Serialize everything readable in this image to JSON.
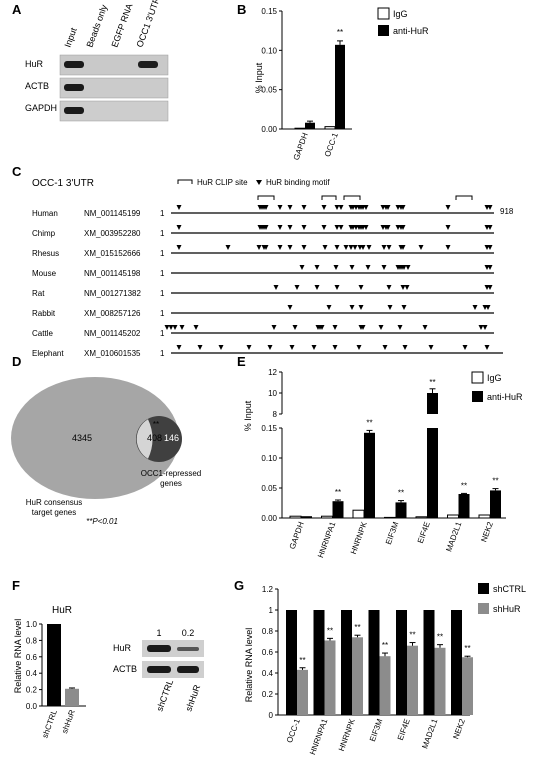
{
  "panel_letters": [
    "A",
    "B",
    "C",
    "D",
    "E",
    "F",
    "G"
  ],
  "panelA": {
    "columns": [
      "Input",
      "Beads only",
      "EGFP RNA",
      "OCC1 3'UTR"
    ],
    "rows": [
      "HuR",
      "ACTB",
      "GAPDH"
    ],
    "bands": [
      [
        1,
        0,
        0,
        1
      ],
      [
        1,
        0,
        0,
        0
      ],
      [
        1,
        0,
        0,
        0
      ]
    ]
  },
  "panelB": {
    "ylabel": "% Input",
    "legend": [
      "IgG",
      "anti-HuR"
    ],
    "sig": "**"
  },
  "panelC": {
    "title": "OCC-1 3'UTR",
    "legend_clip": "HuR CLIP site",
    "legend_motif": "HuR binding motif",
    "start": "1",
    "end_label": "918",
    "species": [
      {
        "name": "Human",
        "acc": "NM_001145199"
      },
      {
        "name": "Chimp",
        "acc": "XM_003952280"
      },
      {
        "name": "Rhesus",
        "acc": "XM_015152666"
      },
      {
        "name": "Mouse",
        "acc": "NM_001145198"
      },
      {
        "name": "Rat",
        "acc": "NM_001271382"
      },
      {
        "name": "Rabbit",
        "acc": "XM_008257126"
      },
      {
        "name": "Cattle",
        "acc": "NM_001145202"
      },
      {
        "name": "Elephant",
        "acc": "XM_010601535"
      }
    ]
  },
  "panelD": {
    "big_count": "4345",
    "overlap_count": "408",
    "small_count": "146",
    "overlap_sig": "**",
    "big_label_1": "HuR consensus",
    "big_label_2": "target genes",
    "small_label_1": "OCC1-repressed",
    "small_label_2": "genes",
    "pvalue": "**P<0.01"
  },
  "panelE": {
    "ylabel": "% Input",
    "legend": [
      "IgG",
      "anti-HuR"
    ],
    "sig": "**"
  },
  "panelF": {
    "title": "HuR",
    "ylabel": "Relative RNA level",
    "blot_values": [
      "1",
      "0.2"
    ],
    "blot_rows": [
      "HuR",
      "ACTB"
    ],
    "blot_cols": [
      "shCTRL",
      "shHuR"
    ]
  },
  "panelG": {
    "ylabel": "Relative RNA level",
    "legend": [
      "shCTRL",
      "shHuR"
    ],
    "sig": "**"
  },
  "chart_data": [
    {
      "type": "bar",
      "categories": [
        "GAPDH",
        "OCC-1"
      ],
      "series": [
        {
          "name": "IgG",
          "values": [
            0.001,
            0.003
          ]
        },
        {
          "name": "anti-HuR",
          "values": [
            0.008,
            0.107
          ]
        }
      ],
      "errors": [
        [
          0.0005,
          0.001
        ],
        [
          0.002,
          0.005
        ]
      ],
      "ylabel": "% Input",
      "ylim": [
        0,
        0.15
      ],
      "yticks": [
        "0.00",
        "0.05",
        "0.10",
        "0.15"
      ],
      "annotations": [
        "**"
      ]
    },
    {
      "type": "bar",
      "categories": [
        "GAPDH",
        "HNRNPA1",
        "HNRNPK",
        "EIF3M",
        "EIF4E",
        "MAD2L1",
        "NEK2"
      ],
      "series": [
        {
          "name": "IgG",
          "values": [
            0.003,
            0.003,
            0.013,
            0.001,
            0.002,
            0.005,
            0.005
          ]
        },
        {
          "name": "anti-HuR",
          "values": [
            0.003,
            0.028,
            0.142,
            0.026,
            10,
            0.04,
            0.046
          ]
        }
      ],
      "errors": [
        0.0005,
        0.002,
        0.004,
        0.003,
        0.4,
        0.001,
        0.003
      ],
      "ylabel": "% Input",
      "axis_break": [
        0.15,
        8
      ],
      "yticks_low": [
        "0.00",
        "0.05",
        "0.10",
        "0.15"
      ],
      "yticks_high": [
        "8",
        "10",
        "12"
      ],
      "annotations": [
        "**"
      ]
    },
    {
      "type": "bar",
      "categories": [
        "shCTRL",
        "shHuR"
      ],
      "values": [
        1.0,
        0.21
      ],
      "errors": [
        0,
        0.01
      ],
      "title": "HuR",
      "ylabel": "Relative RNA level",
      "ylim": [
        0,
        1.0
      ],
      "yticks": [
        "0.0",
        "0.2",
        "0.4",
        "0.6",
        "0.8",
        "1.0"
      ]
    },
    {
      "type": "bar",
      "categories": [
        "OCC-1",
        "HNRNPA1",
        "HNRNPK",
        "EIF3M",
        "EIF4E",
        "MAD2L1",
        "NEK2"
      ],
      "series": [
        {
          "name": "shCTRL",
          "values": [
            1,
            1,
            1,
            1,
            1,
            1,
            1
          ]
        },
        {
          "name": "shHuR",
          "values": [
            0.43,
            0.71,
            0.74,
            0.56,
            0.66,
            0.64,
            0.55
          ]
        }
      ],
      "errors": [
        0.02,
        0.02,
        0.02,
        0.03,
        0.03,
        0.03,
        0.01
      ],
      "ylabel": "Relative RNA level",
      "ylim": [
        0,
        1.2
      ],
      "yticks": [
        "0",
        "0.2",
        "0.4",
        "0.6",
        "0.8",
        "1",
        "1.2"
      ],
      "annotations": [
        "**"
      ]
    }
  ]
}
